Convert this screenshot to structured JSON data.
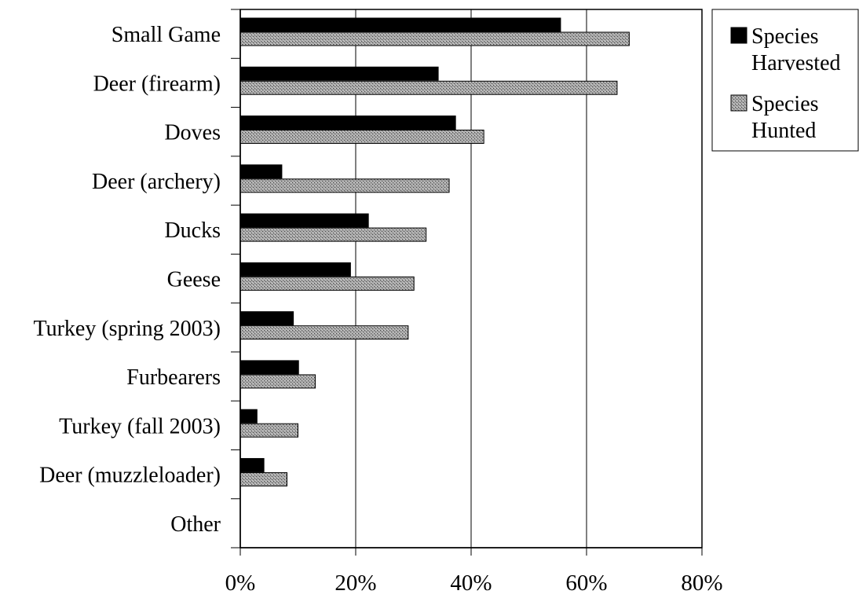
{
  "chart_data": {
    "type": "bar",
    "orientation": "horizontal",
    "title": "",
    "xlabel": "",
    "ylabel": "",
    "xlim": [
      0,
      80
    ],
    "x_ticks": [
      "0%",
      "20%",
      "40%",
      "60%",
      "80%"
    ],
    "grid": "vertical",
    "legend_position": "top-right",
    "categories": [
      "Small Game",
      "Deer (firearm)",
      "Doves",
      "Deer (archery)",
      "Ducks",
      "Geese",
      "Turkey (spring 2003)",
      "Furbearers",
      "Turkey (fall 2003)",
      "Deer (muzzleloader)",
      "Other"
    ],
    "series": [
      {
        "name": "Species Harvested",
        "legend_lines": [
          "Species",
          "Harvested"
        ],
        "color": "#000000",
        "values": [
          55.5,
          34.3,
          37.3,
          7.2,
          22.2,
          19.1,
          9.2,
          10.1,
          2.9,
          4.1,
          0
        ]
      },
      {
        "name": "Species Hunted",
        "legend_lines": [
          "Species",
          "Hunted"
        ],
        "color": "#9a9a9a",
        "values": [
          67.4,
          65.3,
          42.2,
          36.2,
          32.2,
          30.1,
          29.1,
          13.0,
          10.0,
          8.1,
          0
        ]
      }
    ]
  }
}
